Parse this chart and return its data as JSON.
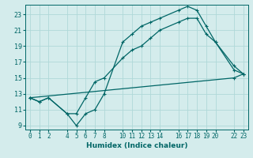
{
  "xlabel": "Humidex (Indice chaleur)",
  "bg_color": "#d4ecec",
  "line_color": "#006666",
  "grid_color": "#b0d8d8",
  "xlim": [
    -0.5,
    23.5
  ],
  "ylim": [
    8.5,
    24.2
  ],
  "xticks": [
    0,
    1,
    2,
    4,
    5,
    6,
    7,
    8,
    10,
    11,
    12,
    13,
    14,
    16,
    17,
    18,
    19,
    20,
    22,
    23
  ],
  "yticks": [
    9,
    11,
    13,
    15,
    17,
    19,
    21,
    23
  ],
  "line1_x": [
    0,
    1,
    2,
    4,
    5,
    6,
    7,
    8,
    10,
    11,
    12,
    13,
    14,
    16,
    17,
    18,
    19,
    20,
    22,
    23
  ],
  "line1_y": [
    12.5,
    12.0,
    12.5,
    10.5,
    9.0,
    10.5,
    11.0,
    13.0,
    19.5,
    20.5,
    21.5,
    22.0,
    22.5,
    23.5,
    24.0,
    23.5,
    21.5,
    19.5,
    16.5,
    15.5
  ],
  "line2_x": [
    0,
    1,
    2,
    4,
    5,
    6,
    7,
    8,
    10,
    11,
    12,
    13,
    14,
    16,
    17,
    18,
    19,
    20,
    22,
    23
  ],
  "line2_y": [
    12.5,
    12.0,
    12.5,
    10.5,
    10.5,
    12.5,
    14.5,
    15.0,
    17.5,
    18.5,
    19.0,
    20.0,
    21.0,
    22.0,
    22.5,
    22.5,
    20.5,
    19.5,
    16.0,
    15.5
  ],
  "line3_x": [
    0,
    22,
    23
  ],
  "line3_y": [
    12.5,
    15.0,
    15.5
  ],
  "marker": "+"
}
